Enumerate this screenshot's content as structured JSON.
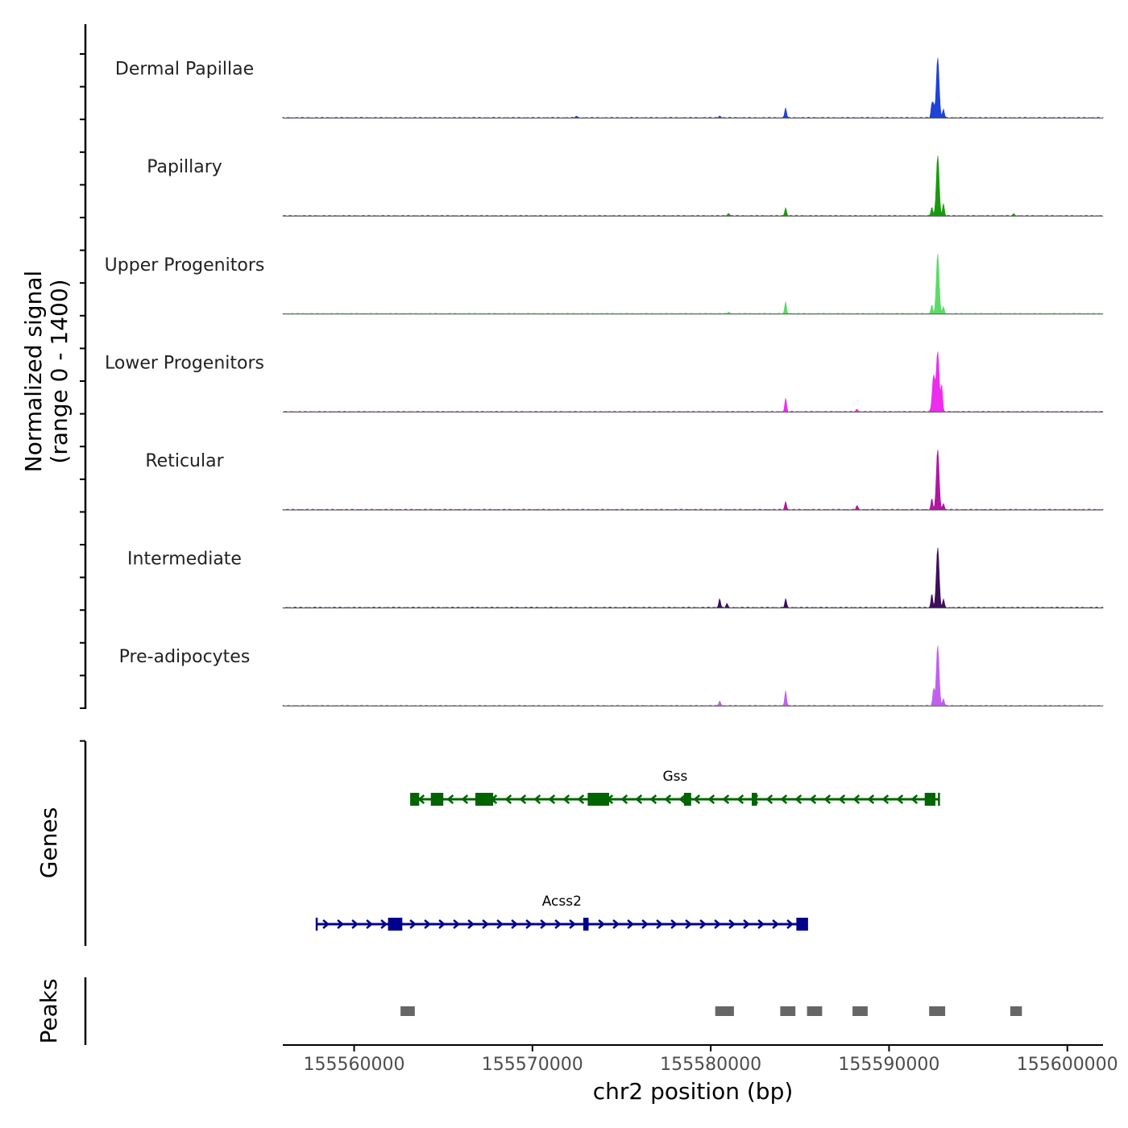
{
  "chart_data": {
    "type": "area",
    "genome_browser": true,
    "x": {
      "label": "chr2 position (bp)",
      "range": [
        155556000,
        155602000
      ],
      "ticks": [
        155560000,
        155570000,
        155580000,
        155590000,
        155600000
      ],
      "tick_labels": [
        "155560000",
        "155570000",
        "155580000",
        "155590000",
        "155600000"
      ]
    },
    "y": {
      "label_line1": "Normalized signal",
      "label_line2": "(range 0 - 1400)",
      "range": [
        0,
        1400
      ]
    },
    "tracks": [
      {
        "name": "Dermal Papillae",
        "color": "#1f43d6",
        "peaks": [
          {
            "pos": 155592730,
            "height": 1.0
          },
          {
            "pos": 155592400,
            "height": 0.22
          },
          {
            "pos": 155592500,
            "height": 0.2
          },
          {
            "pos": 155593050,
            "height": 0.15
          },
          {
            "pos": 155584200,
            "height": 0.17
          },
          {
            "pos": 155572450,
            "height": 0.03
          },
          {
            "pos": 155580500,
            "height": 0.03
          }
        ]
      },
      {
        "name": "Papillary",
        "color": "#1a9a0e",
        "peaks": [
          {
            "pos": 155592730,
            "height": 1.0
          },
          {
            "pos": 155592400,
            "height": 0.15
          },
          {
            "pos": 155593050,
            "height": 0.2
          },
          {
            "pos": 155584200,
            "height": 0.13
          },
          {
            "pos": 155581000,
            "height": 0.04
          },
          {
            "pos": 155597000,
            "height": 0.03
          }
        ]
      },
      {
        "name": "Upper Progenitors",
        "color": "#5ddb6a",
        "peaks": [
          {
            "pos": 155592730,
            "height": 1.0
          },
          {
            "pos": 155592400,
            "height": 0.15
          },
          {
            "pos": 155593050,
            "height": 0.12
          },
          {
            "pos": 155584200,
            "height": 0.2
          },
          {
            "pos": 155581000,
            "height": 0.03
          }
        ]
      },
      {
        "name": "Lower Progenitors",
        "color": "#ee2cee",
        "peaks": [
          {
            "pos": 155592730,
            "height": 1.0
          },
          {
            "pos": 155592500,
            "height": 0.6
          },
          {
            "pos": 155592950,
            "height": 0.45
          },
          {
            "pos": 155584200,
            "height": 0.22
          },
          {
            "pos": 155588200,
            "height": 0.04
          }
        ]
      },
      {
        "name": "Reticular",
        "color": "#b0179f",
        "peaks": [
          {
            "pos": 155592730,
            "height": 1.0
          },
          {
            "pos": 155592400,
            "height": 0.18
          },
          {
            "pos": 155593050,
            "height": 0.1
          },
          {
            "pos": 155584200,
            "height": 0.13
          },
          {
            "pos": 155588200,
            "height": 0.07
          }
        ]
      },
      {
        "name": "Intermediate",
        "color": "#3d0f5a",
        "peaks": [
          {
            "pos": 155592730,
            "height": 1.0
          },
          {
            "pos": 155592400,
            "height": 0.23
          },
          {
            "pos": 155593050,
            "height": 0.14
          },
          {
            "pos": 155584200,
            "height": 0.15
          },
          {
            "pos": 155580500,
            "height": 0.15
          },
          {
            "pos": 155580900,
            "height": 0.07
          }
        ]
      },
      {
        "name": "Pre-adipocytes",
        "color": "#c060f0",
        "peaks": [
          {
            "pos": 155592730,
            "height": 1.0
          },
          {
            "pos": 155592500,
            "height": 0.28
          },
          {
            "pos": 155593050,
            "height": 0.12
          },
          {
            "pos": 155584200,
            "height": 0.25
          },
          {
            "pos": 155580500,
            "height": 0.08
          }
        ]
      }
    ],
    "genes_panel_label": "Genes",
    "genes": [
      {
        "name": "Gss",
        "strand": "-",
        "color": "#006400",
        "start": 155563200,
        "end": 155592800,
        "exons": [
          [
            155563200,
            155563650
          ],
          [
            155564300,
            155565000
          ],
          [
            155566800,
            155567800
          ],
          [
            155573100,
            155574300
          ],
          [
            155578500,
            155578900
          ],
          [
            155582300,
            155582600
          ],
          [
            155592000,
            155592600
          ]
        ]
      },
      {
        "name": "Acss2",
        "strand": "+",
        "color": "#00008b",
        "start": 155557900,
        "end": 155585400,
        "exons": [
          [
            155561900,
            155562700
          ],
          [
            155572850,
            155573150
          ],
          [
            155584800,
            155585400
          ]
        ]
      }
    ],
    "peaks_panel_label": "Peaks",
    "peak_regions": [
      [
        155562600,
        155563400
      ],
      [
        155580250,
        155581300
      ],
      [
        155583900,
        155584750
      ],
      [
        155585400,
        155586250
      ],
      [
        155587950,
        155588800
      ],
      [
        155592250,
        155593150
      ],
      [
        155596800,
        155597450
      ]
    ]
  }
}
